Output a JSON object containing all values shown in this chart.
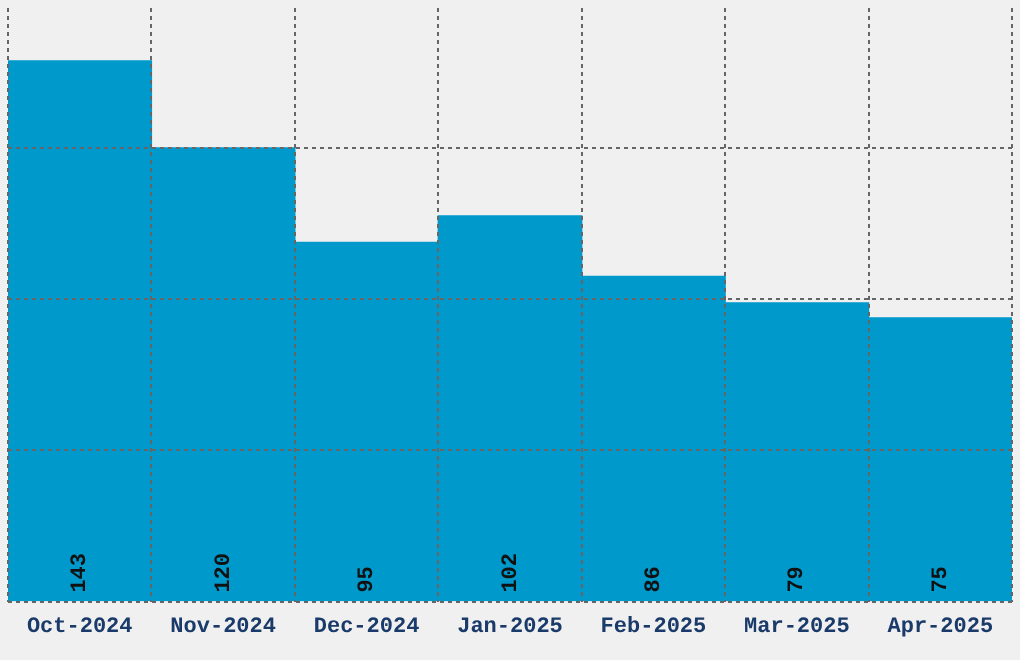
{
  "chart_data": {
    "type": "bar",
    "categories": [
      "Oct-2024",
      "Nov-2024",
      "Dec-2024",
      "Jan-2025",
      "Feb-2025",
      "Mar-2025",
      "Apr-2025"
    ],
    "values": [
      143,
      120,
      95,
      102,
      86,
      79,
      75
    ],
    "color": "#0099cc",
    "ylim": [
      0,
      157
    ],
    "yticks": [
      {
        "value": 0,
        "label": null
      },
      {
        "value": 40,
        "label": null
      },
      {
        "value": 80,
        "label": null
      },
      {
        "value": 120,
        "label": null
      }
    ],
    "grid": true,
    "tick_labels": "x",
    "data_labels": true
  }
}
